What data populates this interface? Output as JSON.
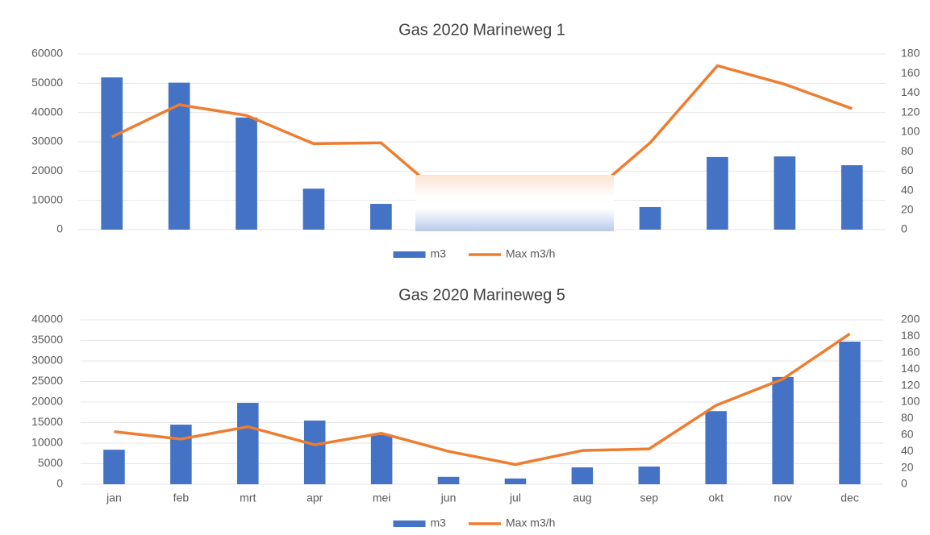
{
  "chart_data": [
    {
      "type": "combo",
      "title": "Gas 2020 Marineweg 1",
      "categories": [
        null,
        null,
        null,
        null,
        null,
        null,
        null,
        null,
        null,
        null,
        null,
        null
      ],
      "series": [
        {
          "name": "m3",
          "type": "bar",
          "color": "#4472c4",
          "values": [
            52000,
            50200,
            38300,
            14000,
            8800,
            2500,
            1500,
            4500,
            7700,
            24800,
            25000,
            22000
          ]
        },
        {
          "name": "Max m3/h",
          "type": "line",
          "axis": "y2",
          "color": "#ed7d31",
          "values": [
            95,
            128,
            117,
            88,
            89,
            30,
            20,
            30,
            89,
            168,
            149,
            124
          ]
        }
      ],
      "ylim": [
        0,
        60000
      ],
      "yticks": [
        0,
        10000,
        20000,
        30000,
        40000,
        50000,
        60000
      ],
      "y2lim": [
        0,
        180
      ],
      "y2ticks": [
        0,
        20,
        40,
        60,
        80,
        100,
        120,
        140,
        160,
        180
      ],
      "grid": true,
      "legend": "bottom"
    },
    {
      "type": "combo",
      "title": "Gas 2020 Marineweg 5",
      "categories": [
        "jan",
        "feb",
        "mrt",
        "apr",
        "mei",
        "jun",
        "jul",
        "aug",
        "sep",
        "okt",
        "nov",
        "dec"
      ],
      "series": [
        {
          "name": "m3",
          "type": "bar",
          "color": "#4472c4",
          "values": [
            8400,
            14500,
            19800,
            15500,
            12000,
            1800,
            1400,
            4100,
            4300,
            17800,
            26100,
            34700
          ]
        },
        {
          "name": "Max m3/h",
          "type": "line",
          "axis": "y2",
          "color": "#ed7d31",
          "values": [
            64,
            55,
            70,
            48,
            62,
            40,
            24,
            41,
            43,
            96,
            128,
            183
          ]
        }
      ],
      "ylim": [
        0,
        40000
      ],
      "yticks": [
        0,
        5000,
        10000,
        15000,
        20000,
        25000,
        30000,
        35000,
        40000
      ],
      "y2lim": [
        0,
        200
      ],
      "y2ticks": [
        0,
        20,
        40,
        60,
        80,
        100,
        120,
        140,
        160,
        180,
        200
      ],
      "grid": true,
      "legend": "bottom"
    }
  ]
}
